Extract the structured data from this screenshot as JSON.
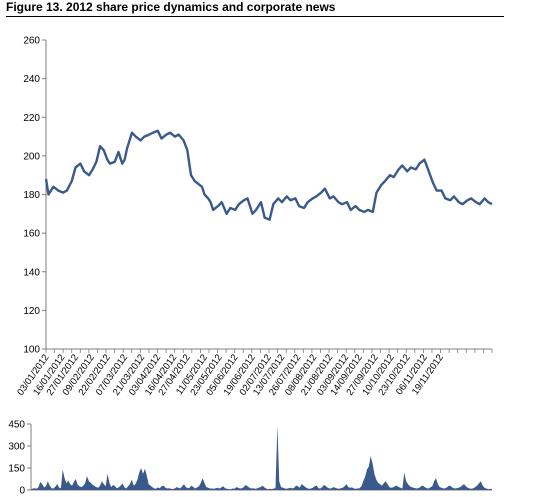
{
  "title": "Figure 13. 2012 share price dynamics and corporate news",
  "colors": {
    "price_line": "#3a5a8c",
    "volume_fill": "#3a5a8c",
    "axis": "#7f7f7f"
  },
  "chart_data": [
    {
      "type": "line",
      "title": "",
      "xlabel": "",
      "ylabel": "",
      "ylim": [
        100,
        260
      ],
      "yticks": [
        100,
        120,
        140,
        160,
        180,
        200,
        220,
        240,
        260
      ],
      "xlim": [
        "03/01/2012",
        "31/12/2012"
      ],
      "xticks": [
        "03/01/2012",
        "16/01/2012",
        "27/01/2012",
        "09/02/2012",
        "22/02/2012",
        "07/03/2012",
        "21/03/2012",
        "03/04/2012",
        "16/04/2012",
        "27/04/2012",
        "11/05/2012",
        "23/05/2012",
        "05/06/2012",
        "19/06/2012",
        "02/07/2012",
        "13/07/2012",
        "26/07/2012",
        "08/08/2012",
        "21/08/2012",
        "03/09/2012",
        "14/09/2012",
        "27/09/2012",
        "10/10/2012",
        "23/10/2012",
        "06/11/2012",
        "19/11/2012"
      ],
      "grid": false,
      "series": [
        {
          "name": "",
          "x": [
            "03/01/2012",
            "05/01/2012",
            "09/01/2012",
            "13/01/2012",
            "17/01/2012",
            "20/01/2012",
            "24/01/2012",
            "27/01/2012",
            "31/01/2012",
            "03/02/2012",
            "07/02/2012",
            "10/02/2012",
            "13/02/2012",
            "16/02/2012",
            "19/02/2012",
            "22/02/2012",
            "24/02/2012",
            "28/02/2012",
            "02/03/2012",
            "05/03/2012",
            "07/03/2012",
            "09/03/2012",
            "13/03/2012",
            "16/03/2012",
            "20/03/2012",
            "23/03/2012",
            "27/03/2012",
            "30/03/2012",
            "03/04/2012",
            "06/04/2012",
            "10/04/2012",
            "13/04/2012",
            "17/04/2012",
            "20/04/2012",
            "24/04/2012",
            "27/04/2012",
            "30/04/2012",
            "03/05/2012",
            "05/05/2012",
            "09/05/2012",
            "11/05/2012",
            "14/05/2012",
            "16/05/2012",
            "18/05/2012",
            "22/05/2012",
            "25/05/2012",
            "29/05/2012",
            "01/06/2012",
            "05/06/2012",
            "08/06/2012",
            "12/06/2012",
            "15/06/2012",
            "19/06/2012",
            "22/06/2012",
            "26/06/2012",
            "29/06/2012",
            "03/07/2012",
            "06/07/2012",
            "10/07/2012",
            "13/07/2012",
            "17/07/2012",
            "20/07/2012",
            "24/07/2012",
            "27/07/2012",
            "31/07/2012",
            "03/08/2012",
            "07/08/2012",
            "10/08/2012",
            "14/08/2012",
            "17/08/2012",
            "21/08/2012",
            "24/08/2012",
            "28/08/2012",
            "31/08/2012",
            "04/09/2012",
            "07/09/2012",
            "11/09/2012",
            "14/09/2012",
            "18/09/2012",
            "21/09/2012",
            "25/09/2012",
            "28/09/2012",
            "02/10/2012",
            "05/10/2012",
            "09/10/2012",
            "12/10/2012",
            "16/10/2012",
            "19/10/2012",
            "23/10/2012",
            "26/10/2012",
            "30/10/2012",
            "02/11/2012",
            "06/11/2012",
            "09/11/2012",
            "13/11/2012",
            "16/11/2012",
            "20/11/2012",
            "23/11/2012",
            "27/11/2012",
            "30/11/2012",
            "04/12/2012",
            "07/12/2012",
            "11/12/2012",
            "14/12/2012",
            "18/12/2012",
            "21/12/2012",
            "25/12/2012",
            "28/12/2012",
            "31/12/2012"
          ],
          "values": [
            188,
            180,
            184,
            182,
            181,
            182,
            187,
            194,
            196,
            192,
            190,
            193,
            197,
            205,
            203,
            198,
            196,
            197,
            202,
            196,
            198,
            204,
            212,
            210,
            208,
            210,
            211,
            212,
            213,
            209,
            211,
            212,
            210,
            211,
            208,
            203,
            190,
            187,
            186,
            184,
            180,
            178,
            176,
            172,
            174,
            176,
            170,
            173,
            172,
            175,
            177,
            178,
            170,
            172,
            176,
            168,
            167,
            175,
            178,
            176,
            179,
            177,
            178,
            174,
            173,
            176,
            178,
            179,
            181,
            183,
            178,
            179,
            176,
            175,
            176,
            172,
            174,
            172,
            171,
            172,
            171,
            181,
            185,
            187,
            190,
            189,
            193,
            195,
            192,
            194,
            193,
            196,
            198,
            193,
            186,
            182,
            182,
            178,
            177,
            179,
            176,
            175,
            177,
            178,
            176,
            175,
            178,
            176,
            175
          ]
        }
      ]
    },
    {
      "type": "area",
      "title": "",
      "xlabel": "",
      "ylabel": "",
      "ylim": [
        0,
        450
      ],
      "yticks": [
        0,
        150,
        300,
        450
      ],
      "grid": false,
      "series": [
        {
          "name": "",
          "values": [
            5,
            10,
            12,
            8,
            20,
            55,
            40,
            18,
            25,
            60,
            30,
            12,
            10,
            22,
            40,
            18,
            10,
            140,
            80,
            45,
            65,
            40,
            30,
            55,
            75,
            35,
            25,
            20,
            30,
            45,
            95,
            60,
            50,
            35,
            28,
            20,
            15,
            30,
            60,
            40,
            25,
            110,
            50,
            20,
            35,
            25,
            12,
            18,
            30,
            45,
            20,
            10,
            25,
            40,
            70,
            30,
            40,
            70,
            120,
            150,
            110,
            145,
            100,
            40,
            30,
            20,
            10,
            8,
            18,
            12,
            25,
            30,
            15,
            10,
            12,
            8,
            6,
            10,
            20,
            15,
            10,
            25,
            40,
            20,
            12,
            15,
            30,
            20,
            10,
            18,
            25,
            50,
            80,
            45,
            20,
            15,
            10,
            10,
            8,
            12,
            15,
            10,
            18,
            25,
            12,
            8,
            6,
            5,
            10,
            8,
            20,
            15,
            10,
            12,
            20,
            35,
            25,
            15,
            10,
            12,
            8,
            10,
            15,
            20,
            30,
            18,
            10,
            5,
            8,
            6,
            10,
            12,
            440,
            60,
            20,
            15,
            10,
            8,
            12,
            15,
            10,
            15,
            30,
            25,
            15,
            40,
            30,
            20,
            12,
            8,
            10,
            15,
            25,
            30,
            12,
            10,
            20,
            35,
            25,
            15,
            10,
            12,
            20,
            15,
            10,
            8,
            12,
            15,
            25,
            40,
            20,
            15,
            18,
            10,
            8,
            10,
            12,
            25,
            60,
            90,
            140,
            160,
            230,
            180,
            110,
            70,
            50,
            40,
            30,
            45,
            60,
            40,
            20,
            15,
            18,
            25,
            30,
            20,
            15,
            10,
            120,
            60,
            40,
            25,
            20,
            15,
            12,
            10,
            15,
            25,
            30,
            20,
            12,
            10,
            18,
            25,
            60,
            80,
            40,
            20,
            15,
            10,
            12,
            20,
            30,
            25,
            15,
            10,
            12,
            15,
            20,
            30,
            40,
            25,
            15,
            10,
            8,
            12,
            20,
            30,
            45,
            60,
            30,
            15,
            10,
            5,
            8,
            6
          ]
        }
      ]
    }
  ]
}
